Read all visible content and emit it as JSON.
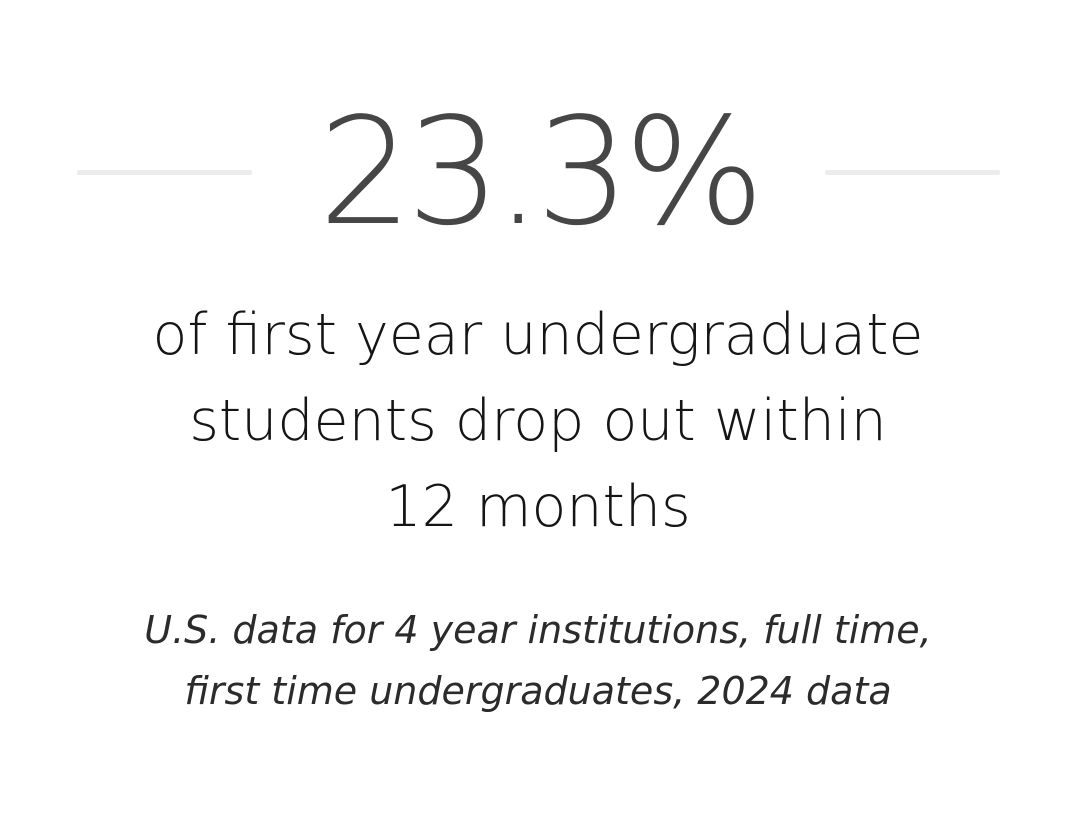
{
  "stat": {
    "value": "23.3%",
    "caption_lines": [
      "of first year undergraduate",
      "students drop out within",
      "12 months"
    ],
    "source_lines": [
      "U.S. data for 4 year institutions, full time,",
      "first time undergraduates, 2024 data"
    ]
  },
  "colors": {
    "value_text": "#464646",
    "caption_text": "#151515",
    "source_text": "#2b2b2b",
    "divider": "#ececec",
    "background": "#ffffff"
  }
}
